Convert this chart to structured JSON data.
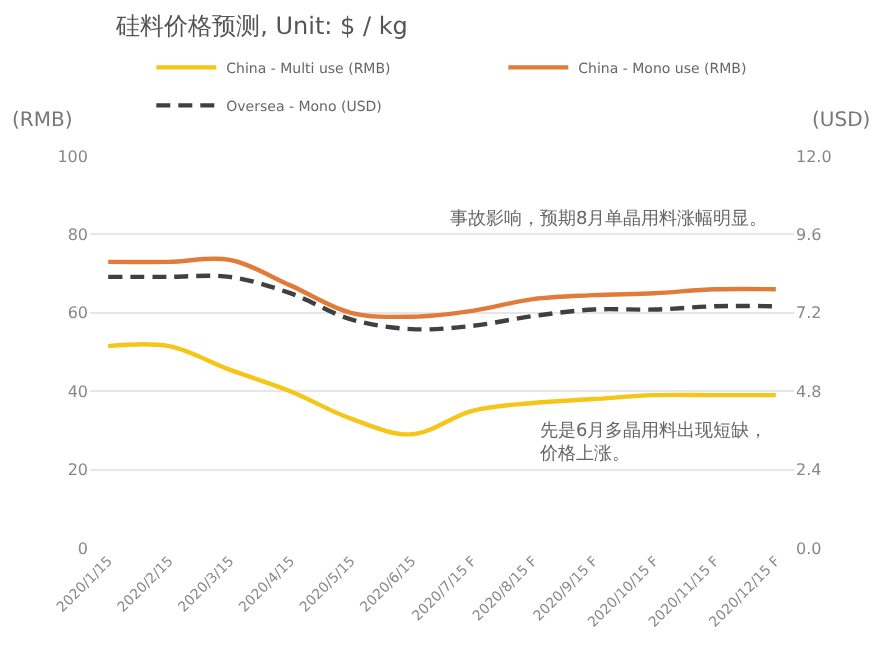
{
  "chart_data": {
    "type": "line",
    "title": "硅料价格预测, Unit: $ / kg",
    "ylabel": "(RMB)",
    "y2label": "(USD)",
    "categories": [
      "2020/1/15",
      "2020/2/15",
      "2020/3/15",
      "2020/4/15",
      "2020/5/15",
      "2020/6/15",
      "2020/7/15 F",
      "2020/8/15 F",
      "2020/9/15 F",
      "2020/10/15 F",
      "2020/11/15 F",
      "2020/12/15 F"
    ],
    "series": [
      {
        "name": "China - Multi use (RMB)",
        "color": "#f5c518",
        "values": [
          51.5,
          51.5,
          45.5,
          40,
          33,
          29,
          35,
          37,
          38,
          39,
          39,
          39
        ]
      },
      {
        "name": "China - Mono use (RMB)",
        "color": "#e07b39",
        "values": [
          73,
          73,
          73.5,
          67,
          60,
          59,
          60.5,
          63.5,
          64.5,
          65,
          66,
          66
        ]
      },
      {
        "name": "Oversea - Mono (USD)",
        "color": "#404040",
        "axis": "y2",
        "line_style": "dashed",
        "values": [
          8.3,
          8.3,
          8.3,
          7.8,
          7.0,
          6.7,
          6.8,
          7.1,
          7.3,
          7.3,
          7.4,
          7.4
        ]
      }
    ],
    "ylim": [
      0,
      100
    ],
    "yticks": [
      0,
      20,
      40,
      60,
      80,
      100
    ],
    "y2lim": [
      0,
      12
    ],
    "y2ticks": [
      {
        "value": 0,
        "label": "0.0"
      },
      {
        "value": 2.4,
        "label": "2.4"
      },
      {
        "value": 4.8,
        "label": "4.8"
      },
      {
        "value": 7.2,
        "label": "7.2"
      },
      {
        "value": 9.6,
        "label": "9.6"
      },
      {
        "value": 12,
        "label": "12.0"
      }
    ],
    "annotations": [
      "事故影响，预期8月单晶用料涨幅明显。",
      "先是6月多晶用料出现短缺，价格上涨。"
    ],
    "grid": "y",
    "legend": "top",
    "marker": "none",
    "line_style": "solid"
  }
}
